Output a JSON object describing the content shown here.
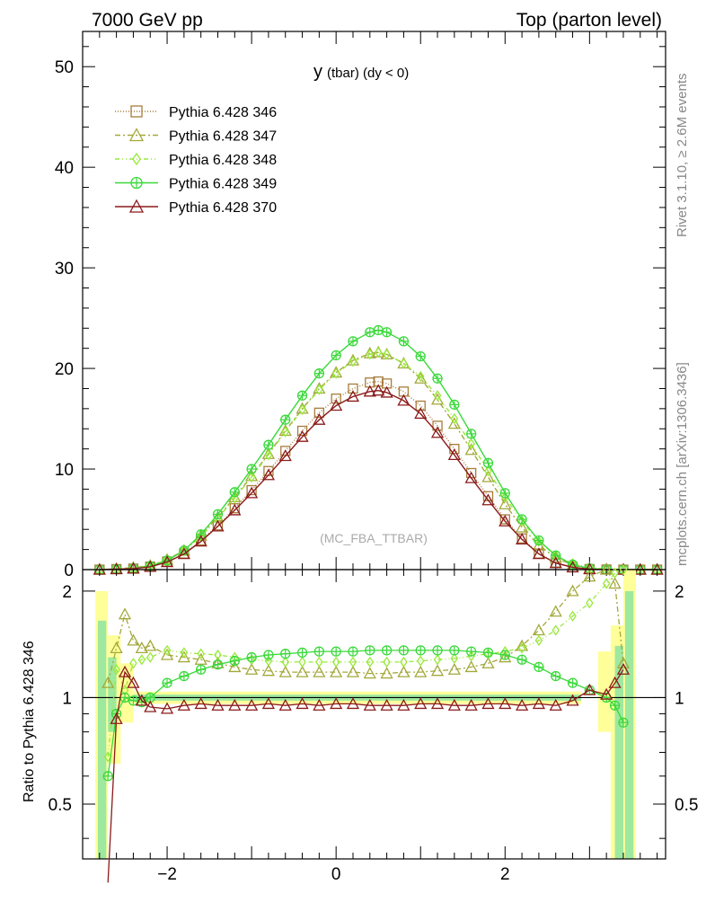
{
  "header": {
    "left": "7000 GeV pp",
    "right": "Top (parton level)"
  },
  "side_labels": {
    "rivet": "Rivet 3.1.10, ≥ 2.6M events",
    "mcplots": "mcplots.cern.ch [arXiv:1306.3436]"
  },
  "chart_data": [
    {
      "type": "line",
      "title": "y (tbar) (dy < 0)",
      "title_main": "y",
      "title_rest": "(tbar) (dy < 0)",
      "watermark": "(MC_FBA_TTBAR)",
      "xlabel": "",
      "ylabel": "",
      "xlim": [
        -3.0,
        3.9
      ],
      "ylim": [
        0,
        53.5
      ],
      "yticks": [
        "0",
        "10",
        "20",
        "30",
        "40",
        "50"
      ],
      "yticks_values": [
        0,
        10,
        20,
        30,
        40,
        50
      ],
      "grid": false,
      "legend_position": "top-left",
      "x": [
        -2.8,
        -2.6,
        -2.4,
        -2.2,
        -2.0,
        -1.8,
        -1.6,
        -1.4,
        -1.2,
        -1.0,
        -0.8,
        -0.6,
        -0.4,
        -0.2,
        0.0,
        0.2,
        0.4,
        0.5,
        0.6,
        0.8,
        1.0,
        1.2,
        1.4,
        1.6,
        1.8,
        2.0,
        2.2,
        2.4,
        2.6,
        2.8,
        3.0,
        3.2,
        3.4,
        3.6,
        3.8
      ],
      "series": [
        {
          "name": "Pythia 6.428 346",
          "color": "#a87c3a",
          "marker": "square",
          "dash": "1,2",
          "values": [
            0.0,
            0.05,
            0.1,
            0.3,
            0.8,
            1.6,
            2.9,
            4.4,
            6.1,
            7.9,
            9.8,
            11.8,
            13.8,
            15.6,
            17.0,
            18.0,
            18.6,
            18.7,
            18.5,
            17.7,
            16.3,
            14.3,
            12.0,
            9.6,
            7.3,
            5.0,
            3.1,
            1.6,
            0.7,
            0.25,
            0.05,
            0.01,
            0.0,
            0.0,
            0.0
          ]
        },
        {
          "name": "Pythia 6.428 347",
          "color": "#a3a83a",
          "marker": "triangle",
          "dash": "6,3,2,3",
          "values": [
            0.0,
            0.08,
            0.2,
            0.4,
            1.0,
            1.9,
            3.4,
            5.2,
            7.2,
            9.3,
            11.5,
            13.8,
            16.0,
            18.0,
            19.6,
            20.8,
            21.5,
            21.6,
            21.4,
            20.5,
            19.0,
            16.9,
            14.5,
            11.9,
            9.2,
            6.5,
            4.2,
            2.4,
            1.2,
            0.45,
            0.1,
            0.02,
            0.0,
            0.0,
            0.0
          ]
        },
        {
          "name": "Pythia 6.428 348",
          "color": "#99e83a",
          "marker": "diamond",
          "dash": "5,3,1,3,1,3",
          "values": [
            0.0,
            0.07,
            0.18,
            0.4,
            0.95,
            1.85,
            3.3,
            5.1,
            7.1,
            9.2,
            11.4,
            13.7,
            15.9,
            17.9,
            19.5,
            20.7,
            21.4,
            21.6,
            21.4,
            20.5,
            19.2,
            17.3,
            15.0,
            12.5,
            9.8,
            7.2,
            4.8,
            2.8,
            1.4,
            0.6,
            0.2,
            0.05,
            0.01,
            0.0,
            0.0
          ]
        },
        {
          "name": "Pythia 6.428 349",
          "color": "#3ad93a",
          "marker": "crosscircle",
          "dash": "",
          "values": [
            0.0,
            0.05,
            0.1,
            0.35,
            0.9,
            1.9,
            3.5,
            5.5,
            7.7,
            10.0,
            12.4,
            14.9,
            17.3,
            19.5,
            21.3,
            22.7,
            23.6,
            23.8,
            23.6,
            22.7,
            21.2,
            19.0,
            16.4,
            13.5,
            10.6,
            7.6,
            5.0,
            2.9,
            1.4,
            0.5,
            0.12,
            0.02,
            0.0,
            0.0,
            0.0
          ]
        },
        {
          "name": "Pythia 6.428 370",
          "color": "#8b1a1a",
          "marker": "triangle",
          "dash": "",
          "values": [
            0.0,
            0.05,
            0.1,
            0.28,
            0.75,
            1.55,
            2.8,
            4.3,
            5.9,
            7.6,
            9.4,
            11.3,
            13.2,
            14.9,
            16.3,
            17.2,
            17.7,
            17.8,
            17.6,
            16.8,
            15.5,
            13.6,
            11.4,
            9.1,
            6.9,
            4.8,
            3.0,
            1.55,
            0.65,
            0.22,
            0.05,
            0.01,
            0.0,
            0.0,
            0.0
          ]
        }
      ]
    },
    {
      "type": "line",
      "title": "",
      "xlabel": "",
      "ylabel": "Ratio to Pythia 6.428 346",
      "xlim": [
        -3.0,
        3.9
      ],
      "ylim": [
        0.35,
        2.3
      ],
      "xticks": [
        "−2",
        "0",
        "2"
      ],
      "xticks_values": [
        -2,
        0,
        2
      ],
      "yticks": [
        "0.5",
        "1",
        "2"
      ],
      "yticks_values": [
        0.5,
        1,
        2
      ],
      "reference_line": 1,
      "x": [
        -2.7,
        -2.6,
        -2.5,
        -2.4,
        -2.3,
        -2.2,
        -2.0,
        -1.8,
        -1.6,
        -1.4,
        -1.2,
        -1.0,
        -0.8,
        -0.6,
        -0.4,
        -0.2,
        0.0,
        0.2,
        0.4,
        0.6,
        0.8,
        1.0,
        1.2,
        1.4,
        1.6,
        1.8,
        2.0,
        2.2,
        2.4,
        2.6,
        2.8,
        3.0,
        3.2,
        3.3,
        3.4
      ],
      "series": [
        {
          "name": "Pythia 6.428 346",
          "color": "#a87c3a",
          "values": [
            1,
            1,
            1,
            1,
            1,
            1,
            1,
            1,
            1,
            1,
            1,
            1,
            1,
            1,
            1,
            1,
            1,
            1,
            1,
            1,
            1,
            1,
            1,
            1,
            1,
            1,
            1,
            1,
            1,
            1,
            1,
            1,
            1,
            1,
            1
          ]
        },
        {
          "name": "Pythia 6.428 347",
          "color": "#a3a83a",
          "values": [
            1.1,
            1.38,
            1.72,
            1.45,
            1.38,
            1.4,
            1.32,
            1.3,
            1.28,
            1.25,
            1.22,
            1.2,
            1.19,
            1.18,
            1.18,
            1.18,
            1.18,
            1.18,
            1.17,
            1.17,
            1.18,
            1.18,
            1.19,
            1.2,
            1.22,
            1.25,
            1.3,
            1.4,
            1.55,
            1.75,
            2.0,
            2.2,
            2.3,
            2.1,
            1.25
          ]
        },
        {
          "name": "Pythia 6.428 348",
          "color": "#99e83a",
          "values": [
            0.68,
            1.2,
            1.05,
            1.25,
            1.28,
            1.3,
            1.36,
            1.34,
            1.33,
            1.32,
            1.3,
            1.28,
            1.27,
            1.26,
            1.26,
            1.26,
            1.26,
            1.26,
            1.26,
            1.26,
            1.26,
            1.27,
            1.28,
            1.29,
            1.31,
            1.33,
            1.35,
            1.38,
            1.45,
            1.55,
            1.7,
            1.85,
            2.1,
            2.25,
            2.3
          ]
        },
        {
          "name": "Pythia 6.428 349",
          "color": "#3ad93a",
          "values": [
            0.6,
            0.9,
            1.0,
            0.98,
            0.97,
            1.0,
            1.1,
            1.15,
            1.2,
            1.24,
            1.27,
            1.3,
            1.32,
            1.33,
            1.34,
            1.35,
            1.35,
            1.35,
            1.36,
            1.36,
            1.36,
            1.36,
            1.36,
            1.36,
            1.35,
            1.34,
            1.32,
            1.28,
            1.22,
            1.15,
            1.1,
            1.05,
            1.0,
            0.95,
            0.85
          ]
        },
        {
          "name": "Pythia 6.428 370",
          "color": "#8b1a1a",
          "values": [
            0.3,
            0.87,
            1.18,
            1.1,
            0.98,
            0.94,
            0.93,
            0.95,
            0.96,
            0.95,
            0.95,
            0.95,
            0.96,
            0.95,
            0.96,
            0.95,
            0.96,
            0.96,
            0.95,
            0.95,
            0.95,
            0.96,
            0.96,
            0.95,
            0.95,
            0.96,
            0.96,
            0.95,
            0.96,
            0.95,
            0.98,
            1.05,
            1.02,
            1.1,
            1.2
          ]
        }
      ]
    }
  ]
}
